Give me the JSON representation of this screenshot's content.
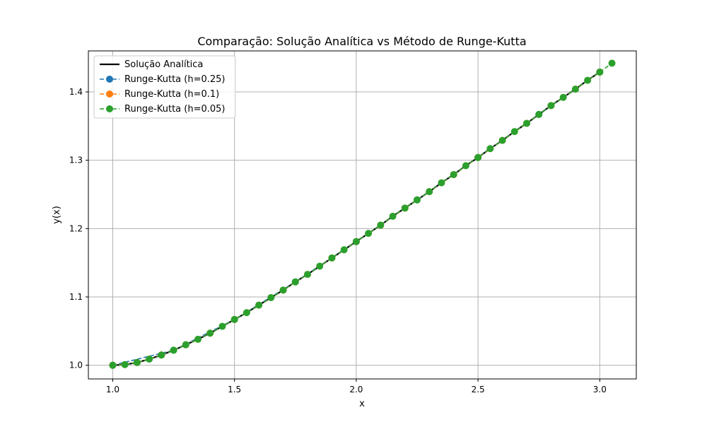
{
  "chart_data": {
    "type": "line",
    "title": "Comparação: Solução Analítica vs Método de Runge-Kutta",
    "xlabel": "x",
    "ylabel": "y(x)",
    "xlim": [
      0.9,
      3.15
    ],
    "ylim": [
      0.98,
      1.46
    ],
    "xticks": [
      1.0,
      1.5,
      2.0,
      2.5,
      3.0
    ],
    "xtick_labels": [
      "1.0",
      "1.5",
      "2.0",
      "2.5",
      "3.0"
    ],
    "yticks": [
      1.0,
      1.1,
      1.2,
      1.3,
      1.4
    ],
    "ytick_labels": [
      "1.0",
      "1.1",
      "1.2",
      "1.3",
      "1.4"
    ],
    "grid": true,
    "legend_position": "top-left",
    "series": [
      {
        "name": "Solução Analítica",
        "style": "solid",
        "markers": false,
        "color": "#000000",
        "x": [
          1.0,
          1.05,
          1.1,
          1.15,
          1.2,
          1.25,
          1.3,
          1.35,
          1.4,
          1.45,
          1.5,
          1.55,
          1.6,
          1.65,
          1.7,
          1.75,
          1.8,
          1.85,
          1.9,
          1.95,
          2.0,
          2.05,
          2.1,
          2.15,
          2.2,
          2.25,
          2.3,
          2.35,
          2.4,
          2.45,
          2.5,
          2.55,
          2.6,
          2.65,
          2.7,
          2.75,
          2.8,
          2.85,
          2.9,
          2.95,
          3.0
        ],
        "y": [
          1.0,
          1.001,
          1.004,
          1.009,
          1.015,
          1.022,
          1.03,
          1.038,
          1.047,
          1.057,
          1.067,
          1.077,
          1.088,
          1.099,
          1.11,
          1.122,
          1.133,
          1.145,
          1.157,
          1.169,
          1.181,
          1.193,
          1.205,
          1.218,
          1.23,
          1.242,
          1.254,
          1.267,
          1.279,
          1.292,
          1.304,
          1.317,
          1.329,
          1.342,
          1.354,
          1.367,
          1.38,
          1.392,
          1.404,
          1.417,
          1.429
        ]
      },
      {
        "name": "Runge-Kutta (h=0.25)",
        "style": "dashed",
        "markers": true,
        "color": "#1f77b4",
        "x": [
          1.0,
          1.25,
          1.5,
          1.75,
          2.0,
          2.25,
          2.5,
          2.75,
          3.0
        ],
        "y": [
          1.0,
          1.022,
          1.067,
          1.122,
          1.181,
          1.242,
          1.304,
          1.367,
          1.429
        ]
      },
      {
        "name": "Runge-Kutta (h=0.1)",
        "style": "dashed",
        "markers": true,
        "color": "#ff7f0e",
        "x": [
          1.0,
          1.1,
          1.2,
          1.3,
          1.4,
          1.5,
          1.6,
          1.7,
          1.8,
          1.9,
          2.0,
          2.1,
          2.2,
          2.3,
          2.4,
          2.5,
          2.6,
          2.7,
          2.8,
          2.9,
          3.0
        ],
        "y": [
          1.0,
          1.004,
          1.015,
          1.03,
          1.047,
          1.067,
          1.088,
          1.11,
          1.133,
          1.157,
          1.181,
          1.205,
          1.23,
          1.254,
          1.279,
          1.304,
          1.329,
          1.354,
          1.38,
          1.404,
          1.429
        ]
      },
      {
        "name": "Runge-Kutta (h=0.05)",
        "style": "dashed",
        "markers": true,
        "color": "#2ca02c",
        "x": [
          1.0,
          1.05,
          1.1,
          1.15,
          1.2,
          1.25,
          1.3,
          1.35,
          1.4,
          1.45,
          1.5,
          1.55,
          1.6,
          1.65,
          1.7,
          1.75,
          1.8,
          1.85,
          1.9,
          1.95,
          2.0,
          2.05,
          2.1,
          2.15,
          2.2,
          2.25,
          2.3,
          2.35,
          2.4,
          2.45,
          2.5,
          2.55,
          2.6,
          2.65,
          2.7,
          2.75,
          2.8,
          2.85,
          2.9,
          2.95,
          3.0,
          3.05
        ],
        "y": [
          1.0,
          1.001,
          1.004,
          1.009,
          1.015,
          1.022,
          1.03,
          1.038,
          1.047,
          1.057,
          1.067,
          1.077,
          1.088,
          1.099,
          1.11,
          1.122,
          1.133,
          1.145,
          1.157,
          1.169,
          1.181,
          1.193,
          1.205,
          1.218,
          1.23,
          1.242,
          1.254,
          1.267,
          1.279,
          1.292,
          1.304,
          1.317,
          1.329,
          1.342,
          1.354,
          1.367,
          1.38,
          1.392,
          1.404,
          1.417,
          1.429,
          1.442
        ]
      }
    ]
  }
}
